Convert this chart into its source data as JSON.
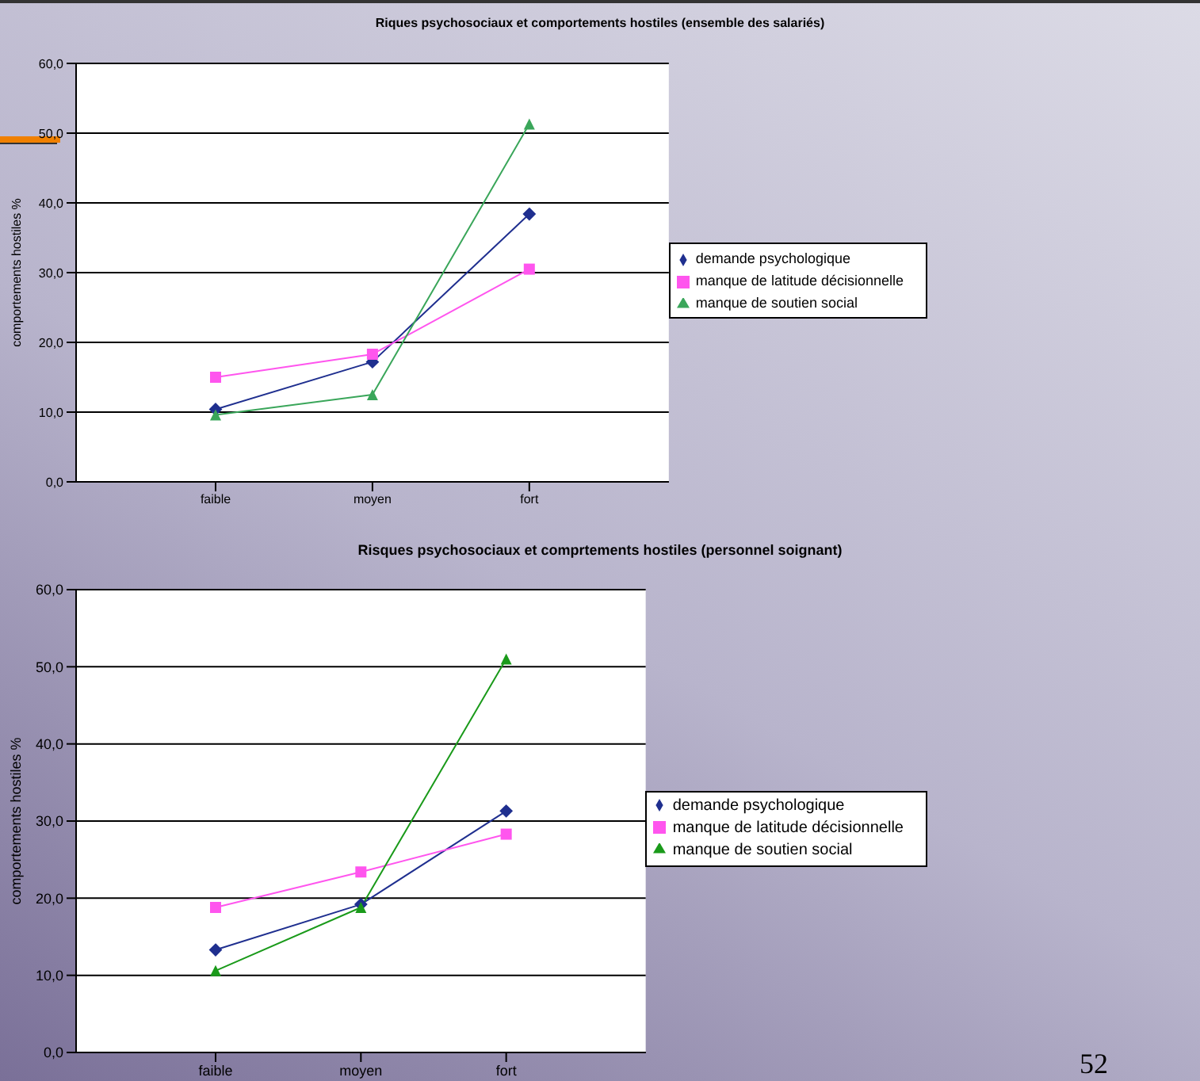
{
  "chart_data": [
    {
      "type": "line",
      "title": "Riques psychosociaux et comportements hostiles (ensemble des salariés)",
      "ylabel": "comportements hostiles %",
      "categories": [
        "faible",
        "moyen",
        "fort"
      ],
      "series": [
        {
          "name": "demande psychologique",
          "color": "#1f2f8f",
          "marker": "diamond",
          "values": [
            10.4,
            17.2,
            38.4
          ]
        },
        {
          "name": "manque de latitude décisionnelle",
          "color": "#ff55ee",
          "marker": "square",
          "values": [
            15.0,
            18.3,
            30.5
          ]
        },
        {
          "name": "manque de soutien social",
          "color": "#3aa65a",
          "marker": "triangle",
          "values": [
            9.6,
            12.5,
            51.3
          ]
        }
      ],
      "ylim": [
        0,
        60
      ],
      "yticks": [
        {
          "value": 0,
          "label": "0,0"
        },
        {
          "value": 10,
          "label": "10,0"
        },
        {
          "value": 20,
          "label": "20,0"
        },
        {
          "value": 30,
          "label": "30,0"
        },
        {
          "value": 40,
          "label": "40,0"
        },
        {
          "value": 50,
          "label": "50,0"
        },
        {
          "value": 60,
          "label": "60,0"
        }
      ],
      "grid": "y",
      "legend": "right",
      "line_style": "solid"
    },
    {
      "type": "line",
      "title": "Risques psychosociaux et comprtements hostiles (personnel soignant)",
      "ylabel": "comportements hostiles %",
      "categories": [
        "faible",
        "moyen",
        "fort"
      ],
      "series": [
        {
          "name": "demande psychologique",
          "color": "#1f2f8f",
          "marker": "diamond",
          "values": [
            13.3,
            19.2,
            31.3
          ]
        },
        {
          "name": "manque de latitude décisionnelle",
          "color": "#ff55ee",
          "marker": "square",
          "values": [
            18.8,
            23.4,
            28.3
          ]
        },
        {
          "name": "manque de soutien social",
          "color": "#1a9a1a",
          "marker": "triangle",
          "values": [
            10.6,
            18.8,
            51.0
          ]
        }
      ],
      "ylim": [
        0,
        60
      ],
      "yticks": [
        {
          "value": 0,
          "label": "0,0"
        },
        {
          "value": 10,
          "label": "10,0"
        },
        {
          "value": 20,
          "label": "20,0"
        },
        {
          "value": 30,
          "label": "30,0"
        },
        {
          "value": 40,
          "label": "40,0"
        },
        {
          "value": 50,
          "label": "50,0"
        },
        {
          "value": 60,
          "label": "60,0"
        }
      ],
      "grid": "y",
      "legend": "right",
      "line_style": "solid",
      "annotations": [
        "52"
      ]
    }
  ]
}
